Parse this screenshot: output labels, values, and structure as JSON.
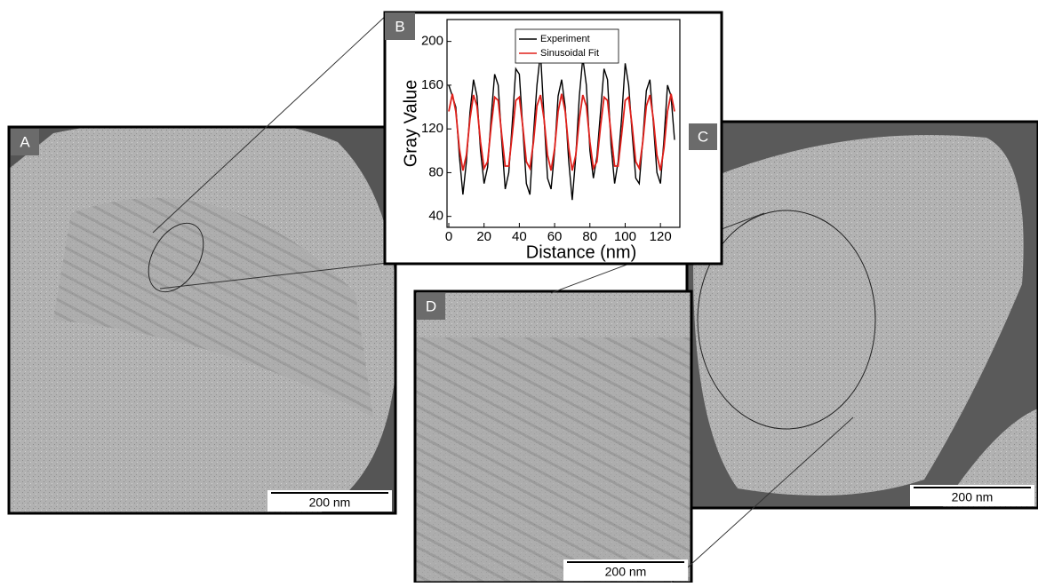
{
  "panels": [
    {
      "label": "A",
      "scale_bar": "200 nm"
    },
    {
      "label": "C",
      "scale_bar": "200 nm"
    },
    {
      "label": "D",
      "scale_bar": "200 nm"
    }
  ],
  "chart_panel_label": "B",
  "chart_data": {
    "type": "line",
    "xlabel": "Distance (nm)",
    "ylabel": "Gray Value",
    "x": [
      0,
      2,
      4,
      6,
      8,
      10,
      12,
      14,
      16,
      18,
      20,
      22,
      24,
      26,
      28,
      30,
      32,
      34,
      36,
      38,
      40,
      42,
      44,
      46,
      48,
      50,
      52,
      54,
      56,
      58,
      60,
      62,
      64,
      66,
      68,
      70,
      72,
      74,
      76,
      78,
      80,
      82,
      84,
      86,
      88,
      90,
      92,
      94,
      96,
      98,
      100,
      102,
      104,
      106,
      108,
      110,
      112,
      114,
      116,
      118,
      120,
      122,
      124,
      126,
      128
    ],
    "series": [
      {
        "name": "Experiment",
        "color": "#000000",
        "values": [
          160,
          150,
          140,
          95,
          60,
          90,
          135,
          165,
          150,
          100,
          70,
          85,
          130,
          170,
          160,
          110,
          65,
          80,
          125,
          175,
          170,
          120,
          70,
          60,
          115,
          160,
          190,
          130,
          75,
          65,
          100,
          150,
          165,
          140,
          90,
          55,
          95,
          150,
          185,
          160,
          100,
          75,
          95,
          135,
          175,
          165,
          105,
          70,
          90,
          130,
          180,
          160,
          115,
          75,
          70,
          110,
          155,
          165,
          125,
          80,
          70,
          110,
          160,
          150,
          110
        ]
      },
      {
        "name": "Sinusoidal Fit",
        "color": "#e0201b",
        "values": [
          136,
          152,
          136,
          102,
          82,
          96,
          129,
          151,
          141,
          108,
          84,
          90,
          122,
          149,
          146,
          115,
          86,
          86,
          115,
          146,
          149,
          122,
          90,
          84,
          108,
          141,
          151,
          129,
          96,
          82,
          102,
          136,
          152,
          136,
          102,
          82,
          96,
          129,
          151,
          141,
          108,
          84,
          90,
          122,
          149,
          146,
          115,
          86,
          86,
          115,
          146,
          149,
          122,
          90,
          84,
          108,
          141,
          151,
          129,
          96,
          82,
          102,
          136,
          152,
          136
        ]
      }
    ],
    "xlim": [
      -1,
      131
    ],
    "ylim": [
      30,
      220
    ],
    "xticks": [
      0,
      20,
      40,
      60,
      80,
      100,
      120
    ],
    "yticks": [
      40,
      80,
      120,
      160,
      200
    ]
  }
}
